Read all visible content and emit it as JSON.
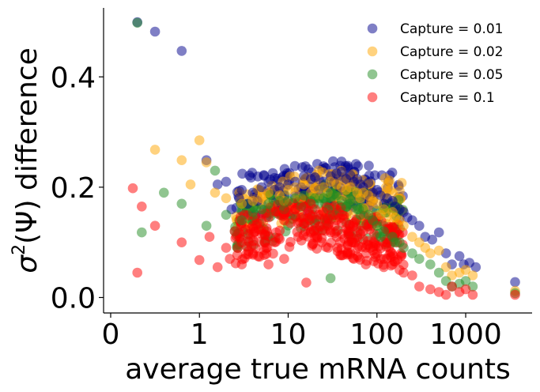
{
  "chart_data": {
    "type": "scatter",
    "title": "",
    "xlabel": "average true mRNA counts",
    "ylabel_prefix": "σ",
    "ylabel_sup": "2",
    "ylabel_suffix": "(Ψ) difference",
    "x_scale": "symlog",
    "x_ticks": [
      0,
      1,
      10,
      100,
      1000
    ],
    "x_tick_labels": [
      "0",
      "1",
      "10",
      "100",
      "1000"
    ],
    "xlim": [
      -0.08,
      5600
    ],
    "y_ticks": [
      0.0,
      0.2,
      0.4
    ],
    "y_tick_labels": [
      "0.0",
      "0.2",
      "0.4"
    ],
    "ylim": [
      -0.028,
      0.525
    ],
    "grid": false,
    "legend_position": "top-right",
    "series": [
      {
        "name": "Capture = 0.01",
        "color": "#00008b",
        "points": [
          [
            0.3,
            0.499
          ],
          [
            0.5,
            0.482
          ],
          [
            0.8,
            0.447
          ],
          [
            1.2,
            0.249
          ],
          [
            1.6,
            0.205
          ],
          [
            2.0,
            0.21
          ],
          [
            2.3,
            0.16
          ],
          [
            3.0,
            0.195
          ],
          [
            4.0,
            0.19
          ],
          [
            5.0,
            0.2
          ],
          [
            6,
            0.21
          ],
          [
            7,
            0.195
          ],
          [
            8,
            0.2
          ],
          [
            10,
            0.205
          ],
          [
            12,
            0.21
          ],
          [
            15,
            0.22
          ],
          [
            18,
            0.215
          ],
          [
            20,
            0.218
          ],
          [
            25,
            0.21
          ],
          [
            30,
            0.22
          ],
          [
            35,
            0.225
          ],
          [
            40,
            0.228
          ],
          [
            45,
            0.215
          ],
          [
            50,
            0.222
          ],
          [
            55,
            0.21
          ],
          [
            60,
            0.215
          ],
          [
            70,
            0.2
          ],
          [
            80,
            0.208
          ],
          [
            90,
            0.19
          ],
          [
            100,
            0.195
          ],
          [
            110,
            0.185
          ],
          [
            130,
            0.18
          ],
          [
            150,
            0.175
          ],
          [
            180,
            0.16
          ],
          [
            200,
            0.155
          ],
          [
            220,
            0.145
          ],
          [
            250,
            0.14
          ],
          [
            300,
            0.13
          ],
          [
            350,
            0.11
          ],
          [
            420,
            0.105
          ],
          [
            500,
            0.118
          ],
          [
            600,
            0.08
          ],
          [
            700,
            0.06
          ],
          [
            850,
            0.075
          ],
          [
            950,
            0.06
          ],
          [
            1100,
            0.063
          ],
          [
            1300,
            0.055
          ],
          [
            3600,
            0.028
          ],
          [
            9,
            0.185
          ],
          [
            14,
            0.2
          ],
          [
            22,
            0.195
          ],
          [
            28,
            0.2
          ],
          [
            33,
            0.21
          ],
          [
            38,
            0.2
          ],
          [
            65,
            0.205
          ],
          [
            75,
            0.185
          ],
          [
            120,
            0.17
          ],
          [
            160,
            0.165
          ],
          [
            4.5,
            0.175
          ],
          [
            3.5,
            0.17
          ],
          [
            2.8,
            0.18
          ]
        ]
      },
      {
        "name": "Capture = 0.02",
        "color": "#ffa500",
        "points": [
          [
            0.5,
            0.268
          ],
          [
            0.8,
            0.249
          ],
          [
            1.0,
            0.285
          ],
          [
            1.2,
            0.245
          ],
          [
            0.9,
            0.205
          ],
          [
            1.5,
            0.19
          ],
          [
            2.0,
            0.18
          ],
          [
            3.0,
            0.17
          ],
          [
            4,
            0.175
          ],
          [
            5,
            0.18
          ],
          [
            6,
            0.19
          ],
          [
            8,
            0.185
          ],
          [
            10,
            0.195
          ],
          [
            12,
            0.2
          ],
          [
            15,
            0.205
          ],
          [
            18,
            0.19
          ],
          [
            20,
            0.198
          ],
          [
            25,
            0.2
          ],
          [
            30,
            0.21
          ],
          [
            35,
            0.205
          ],
          [
            40,
            0.2
          ],
          [
            50,
            0.2
          ],
          [
            60,
            0.19
          ],
          [
            70,
            0.19
          ],
          [
            80,
            0.185
          ],
          [
            90,
            0.175
          ],
          [
            100,
            0.17
          ],
          [
            120,
            0.16
          ],
          [
            150,
            0.155
          ],
          [
            180,
            0.14
          ],
          [
            200,
            0.13
          ],
          [
            250,
            0.11
          ],
          [
            300,
            0.1
          ],
          [
            350,
            0.09
          ],
          [
            400,
            0.08
          ],
          [
            500,
            0.085
          ],
          [
            600,
            0.055
          ],
          [
            700,
            0.04
          ],
          [
            850,
            0.045
          ],
          [
            1000,
            0.05
          ],
          [
            1200,
            0.04
          ],
          [
            3600,
            0.012
          ],
          [
            9,
            0.175
          ],
          [
            14,
            0.18
          ],
          [
            22,
            0.185
          ],
          [
            28,
            0.19
          ],
          [
            45,
            0.195
          ],
          [
            65,
            0.18
          ],
          [
            110,
            0.15
          ],
          [
            160,
            0.145
          ]
        ]
      },
      {
        "name": "Capture = 0.05",
        "color": "#228b22",
        "points": [
          [
            0.3,
            0.498
          ],
          [
            0.35,
            0.118
          ],
          [
            0.6,
            0.19
          ],
          [
            0.8,
            0.17
          ],
          [
            1.5,
            0.23
          ],
          [
            2.0,
            0.15
          ],
          [
            3.0,
            0.14
          ],
          [
            4,
            0.155
          ],
          [
            5,
            0.16
          ],
          [
            6,
            0.17
          ],
          [
            8,
            0.175
          ],
          [
            10,
            0.175
          ],
          [
            12,
            0.18
          ],
          [
            15,
            0.185
          ],
          [
            18,
            0.175
          ],
          [
            20,
            0.18
          ],
          [
            25,
            0.18
          ],
          [
            30,
            0.19
          ],
          [
            35,
            0.185
          ],
          [
            40,
            0.175
          ],
          [
            50,
            0.17
          ],
          [
            60,
            0.16
          ],
          [
            70,
            0.16
          ],
          [
            80,
            0.15
          ],
          [
            90,
            0.14
          ],
          [
            100,
            0.13
          ],
          [
            120,
            0.12
          ],
          [
            150,
            0.11
          ],
          [
            180,
            0.1
          ],
          [
            200,
            0.09
          ],
          [
            250,
            0.08
          ],
          [
            300,
            0.07
          ],
          [
            400,
            0.06
          ],
          [
            500,
            0.045
          ],
          [
            600,
            0.03
          ],
          [
            700,
            0.02
          ],
          [
            850,
            0.025
          ],
          [
            1000,
            0.03
          ],
          [
            1200,
            0.02
          ],
          [
            3600,
            0.008
          ],
          [
            9,
            0.16
          ],
          [
            14,
            0.165
          ],
          [
            22,
            0.17
          ],
          [
            28,
            0.16
          ],
          [
            45,
            0.165
          ],
          [
            65,
            0.15
          ],
          [
            110,
            0.11
          ],
          [
            160,
            0.1
          ],
          [
            30,
            0.035
          ],
          [
            2.5,
            0.12
          ],
          [
            1.2,
            0.13
          ]
        ]
      },
      {
        "name": "Capture = 0.1",
        "color": "#ff0000",
        "points": [
          [
            0.25,
            0.198
          ],
          [
            0.35,
            0.165
          ],
          [
            0.3,
            0.045
          ],
          [
            0.5,
            0.13
          ],
          [
            0.8,
            0.1
          ],
          [
            1.0,
            0.068
          ],
          [
            1.3,
            0.11
          ],
          [
            1.6,
            0.055
          ],
          [
            2.0,
            0.09
          ],
          [
            2.5,
            0.12
          ],
          [
            3.0,
            0.1
          ],
          [
            4,
            0.13
          ],
          [
            5,
            0.14
          ],
          [
            6,
            0.145
          ],
          [
            8,
            0.15
          ],
          [
            10,
            0.155
          ],
          [
            12,
            0.16
          ],
          [
            15,
            0.165
          ],
          [
            18,
            0.17
          ],
          [
            20,
            0.16
          ],
          [
            25,
            0.155
          ],
          [
            30,
            0.15
          ],
          [
            35,
            0.14
          ],
          [
            40,
            0.135
          ],
          [
            50,
            0.12
          ],
          [
            60,
            0.11
          ],
          [
            70,
            0.105
          ],
          [
            80,
            0.095
          ],
          [
            90,
            0.085
          ],
          [
            100,
            0.08
          ],
          [
            120,
            0.07
          ],
          [
            150,
            0.06
          ],
          [
            180,
            0.05
          ],
          [
            200,
            0.045
          ],
          [
            250,
            0.04
          ],
          [
            300,
            0.02
          ],
          [
            400,
            0.015
          ],
          [
            500,
            0.01
          ],
          [
            600,
            0.005
          ],
          [
            700,
            0.02
          ],
          [
            850,
            0.01
          ],
          [
            1000,
            0.015
          ],
          [
            1200,
            0.005
          ],
          [
            3600,
            0.005
          ],
          [
            9,
            0.14
          ],
          [
            14,
            0.145
          ],
          [
            22,
            0.15
          ],
          [
            28,
            0.13
          ],
          [
            45,
            0.125
          ],
          [
            65,
            0.115
          ],
          [
            110,
            0.07
          ],
          [
            160,
            0.065
          ],
          [
            16,
            0.027
          ],
          [
            6,
            0.06
          ],
          [
            4,
            0.08
          ],
          [
            9,
            0.07
          ],
          [
            13,
            0.11
          ],
          [
            18,
            0.12
          ],
          [
            24,
            0.1
          ],
          [
            36,
            0.09
          ],
          [
            55,
            0.07
          ],
          [
            75,
            0.06
          ],
          [
            3,
            0.06
          ],
          [
            2.2,
            0.07
          ]
        ]
      }
    ]
  }
}
